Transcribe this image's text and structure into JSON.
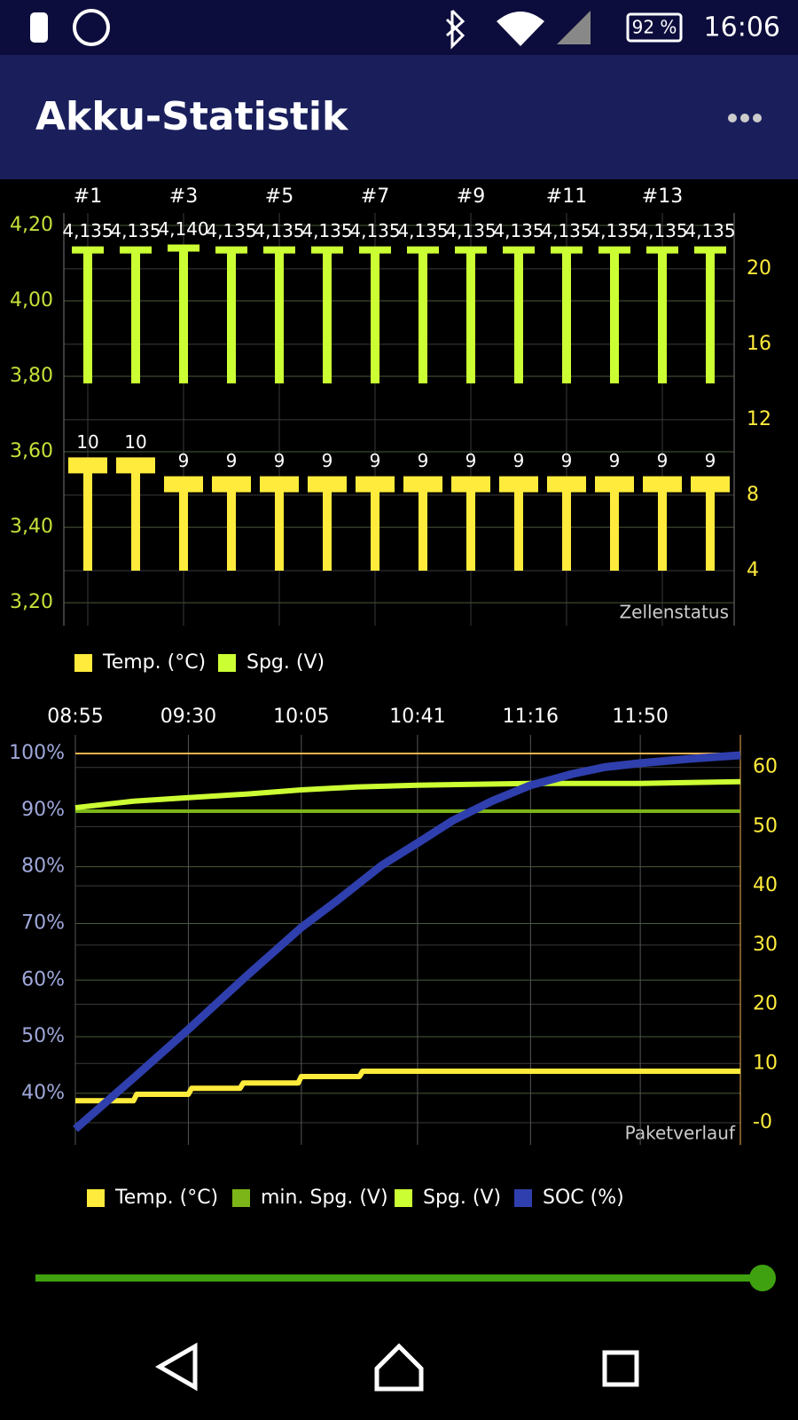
{
  "status_bar": {
    "time": "16:06",
    "battery": "92 %"
  },
  "app_bar": {
    "title": "Akku-Statistik"
  },
  "chart_data": [
    {
      "type": "bar",
      "label": "Zellenstatus",
      "categories": [
        "#1",
        null,
        "#3",
        null,
        "#5",
        null,
        "#7",
        null,
        "#9",
        null,
        "#11",
        null,
        "#13",
        null
      ],
      "ylim": [
        3.139,
        4.233
      ],
      "yticks": [
        {
          "value": 3.2,
          "label": "3,20"
        },
        {
          "value": 3.4,
          "label": "3,40"
        },
        {
          "value": 3.6,
          "label": "3,60"
        },
        {
          "value": 3.8,
          "label": "3,80"
        },
        {
          "value": 4.0,
          "label": "4,00"
        },
        {
          "value": 4.2,
          "label": "4,20"
        }
      ],
      "y2lim": [
        1.08,
        22.96
      ],
      "y2ticks": [
        4,
        8,
        12,
        16,
        20
      ],
      "grid": true,
      "legend": "bottom-left",
      "series": [
        {
          "name": "Temp. (°C)",
          "color": "#ffeb3b",
          "axis": "y2",
          "values": [
            10,
            10,
            9,
            9,
            9,
            9,
            9,
            9,
            9,
            9,
            9,
            9,
            9,
            9
          ]
        },
        {
          "name": "Spg. (V)",
          "color": "#ccff33",
          "values": [
            4.135,
            4.135,
            4.14,
            4.135,
            4.135,
            4.135,
            4.135,
            4.135,
            4.135,
            4.135,
            4.135,
            4.135,
            4.135,
            4.135
          ],
          "value_labels": [
            "4,135",
            "4,135",
            "4,140",
            "4,135",
            "4,135",
            "4,135",
            "4,135",
            "4,135",
            "4,135",
            "4,135",
            "4,135",
            "4,135",
            "4,135",
            "4,135"
          ]
        }
      ]
    },
    {
      "type": "line",
      "label": "Paketverlauf",
      "xlim": [
        535,
        741
      ],
      "xticks": [
        {
          "value": 535,
          "label": "08:55"
        },
        {
          "value": 570,
          "label": "09:30"
        },
        {
          "value": 605,
          "label": "10:05"
        },
        {
          "value": 641,
          "label": "10:41"
        },
        {
          "value": 676,
          "label": "11:16"
        },
        {
          "value": 710,
          "label": "11:50"
        }
      ],
      "ylim": [
        30.9,
        103.3
      ],
      "yticks": [
        {
          "value": 40,
          "label": "40%"
        },
        {
          "value": 50,
          "label": "50%"
        },
        {
          "value": 60,
          "label": "60%"
        },
        {
          "value": 70,
          "label": "70%"
        },
        {
          "value": 80,
          "label": "80%"
        },
        {
          "value": 90,
          "label": "90%"
        },
        {
          "value": 100,
          "label": "100%"
        }
      ],
      "y2lim": [
        -3.75,
        65.5
      ],
      "y2ticks": [
        {
          "value": 0,
          "label": "-0"
        },
        10,
        20,
        30,
        40,
        50,
        60
      ],
      "reference_line": {
        "value": 100,
        "color": "#f4b350"
      },
      "grid": true,
      "legend": "bottom-left",
      "series": [
        {
          "name": "Temp. (°C)",
          "color": "#ffeb3b",
          "axis": "y2",
          "width": 6,
          "x": [
            535,
            553,
            554,
            570,
            571,
            586,
            587,
            604,
            605,
            623,
            624,
            741
          ],
          "values": [
            3.7,
            3.7,
            4.8,
            4.8,
            5.8,
            5.8,
            6.7,
            6.7,
            7.8,
            7.8,
            8.7,
            8.7
          ]
        },
        {
          "name": "min. Spg. (V)",
          "color": "#7cb518",
          "axis": "y2",
          "width": 4,
          "x": [
            535,
            741
          ],
          "values": [
            52.6,
            52.6
          ]
        },
        {
          "name": "Spg. (V)",
          "color": "#ccff33",
          "axis": "y2",
          "width": 6,
          "x": [
            535,
            553,
            570,
            588,
            605,
            622,
            641,
            676,
            710,
            741
          ],
          "values": [
            53.2,
            54.3,
            54.9,
            55.5,
            56.2,
            56.7,
            57.0,
            57.3,
            57.3,
            57.6
          ]
        },
        {
          "name": "SOC (%)",
          "color": "#2f3fad",
          "width": 9,
          "x": [
            535,
            553,
            570,
            588,
            605,
            616,
            630,
            641,
            652,
            664,
            676,
            689,
            699,
            710,
            726,
            741
          ],
          "values": [
            33.7,
            42.7,
            51.3,
            60.7,
            69.3,
            74.0,
            80.3,
            84.2,
            88.2,
            91.6,
            94.4,
            96.4,
            97.6,
            98.3,
            99.1,
            99.7
          ]
        }
      ]
    }
  ]
}
